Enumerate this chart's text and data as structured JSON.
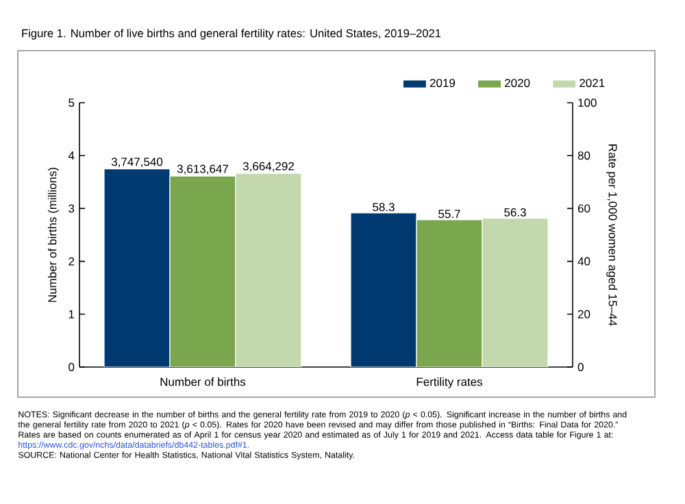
{
  "chart_data": {
    "type": "bar",
    "title": "Figure 1. Number of live births and general fertility rates: United States, 2019–2021",
    "ylabel": "Number of births (millions)",
    "y2label": "Rate per 1,000 women aged 15–44",
    "categories": [
      "Number of births",
      "Fertility rates"
    ],
    "series": [
      {
        "name": "2019",
        "color": "#003a70",
        "values": [
          3.74754,
          null
        ]
      },
      {
        "name": "2020",
        "color": "#7aa74e",
        "values": [
          3.613647,
          null
        ]
      },
      {
        "name": "2021",
        "color": "#c3d9ad",
        "values": [
          3.664292,
          null
        ]
      },
      {
        "color": "#003a70",
        "axis": "y2",
        "values": [
          null,
          58.3
        ],
        "value_labels": [
          null,
          "58.3"
        ]
      },
      {
        "color": "#7aa74e",
        "axis": "y2",
        "values": [
          null,
          55.7
        ],
        "value_labels": [
          null,
          "55.7"
        ]
      },
      {
        "color": "#c3d9ad",
        "axis": "y2",
        "values": [
          null,
          56.3
        ],
        "value_labels": [
          null,
          "56.3"
        ]
      }
    ],
    "ylim": [
      0,
      5
    ],
    "yticks": [
      0,
      1,
      2,
      3,
      4,
      5
    ],
    "y2lim": [
      0,
      100
    ],
    "y2ticks": [
      0,
      20,
      40,
      60,
      80,
      100
    ],
    "legend": "top right",
    "grid": false,
    "annotations": [
      "NOTES: Significant decrease in the number of births and the general fertility rate from 2019 to 2020 (*p* < 0.05). Significant increase in the number of births and the general fertility rate from 2020 to 2021 (*p* < 0.05). Rates for 2020 have been revised and may differ from those published in “Births: Final Data for 2020.” Rates are based on counts enumerated as of April 1 for census year 2020 and estimated as of July 1 for 2019 and 2021. Access data table for Figure 1 at:",
      "https://www.cdc.gov/nchs/data/databriefs/db442-tables.pdf#1.",
      "SOURCE: National Center for Health Statistics, National Vital Statistics System, Natality.",
      "3,747,540",
      "3,613,647",
      "3,664,292"
    ]
  }
}
